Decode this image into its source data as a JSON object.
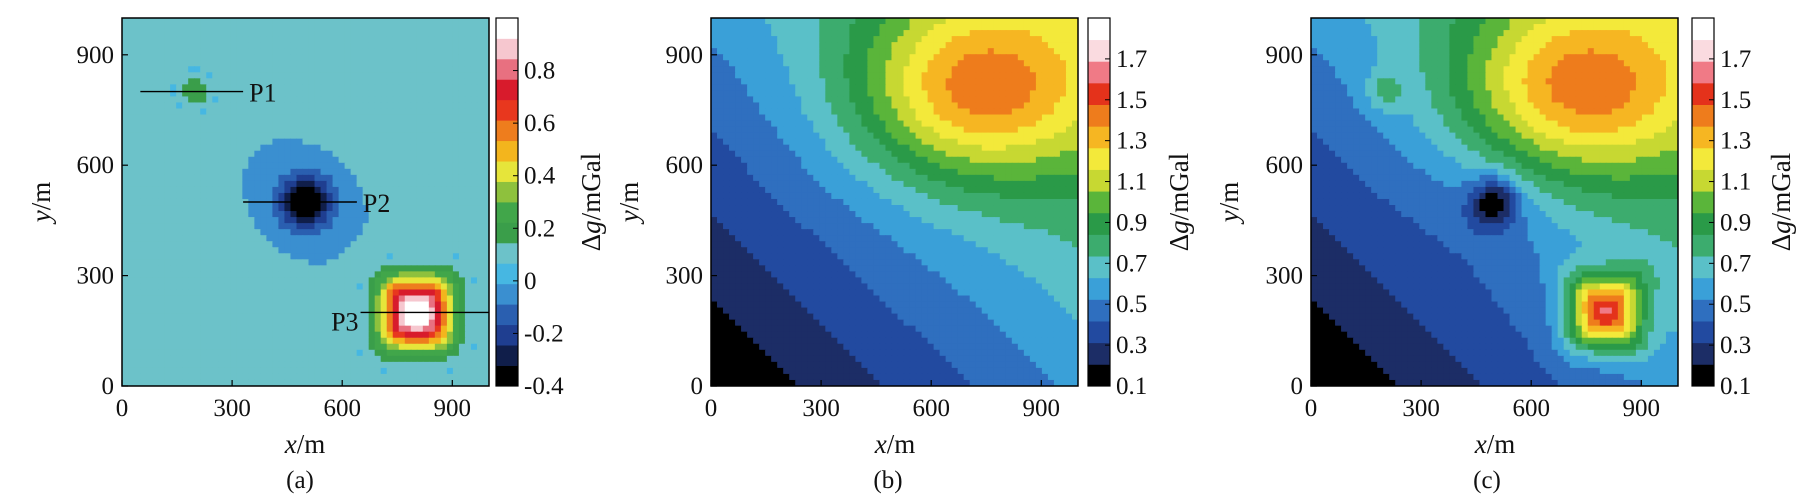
{
  "chart_data": [
    {
      "type": "heatmap",
      "caption": "(a)",
      "xlabel": "x/m",
      "ylabel": "y/m",
      "xlim": [
        0,
        1000
      ],
      "ylim": [
        0,
        1000
      ],
      "xticks": [
        0,
        300,
        600,
        900
      ],
      "yticks": [
        0,
        300,
        600,
        900
      ],
      "colorbar": {
        "label": "Δg/mGal",
        "range": [
          -0.4,
          1.0
        ],
        "ticks": [
          "0.8",
          "0.6",
          "0.4",
          "0.2",
          "0",
          "-0.2",
          "-0.4"
        ],
        "tick_values": [
          0.8,
          0.6,
          0.4,
          0.2,
          0,
          -0.2,
          -0.4
        ]
      },
      "background_value": 0.02,
      "anomalies": [
        {
          "x": 200,
          "y": 800,
          "peak": 0.2,
          "sigma": 35
        },
        {
          "x": 500,
          "y": 500,
          "peak": -0.45,
          "sigma": 45
        },
        {
          "x": 500,
          "y": 500,
          "peak": -0.07,
          "sigma": 180,
          "stretch": "diagonal"
        },
        {
          "x": 800,
          "y": 200,
          "peak": 1.05,
          "sigma": 65,
          "shape": "square"
        }
      ],
      "profiles": [
        {
          "label": "P1",
          "x_start": 50,
          "x_end": 330,
          "y": 800
        },
        {
          "label": "P2",
          "x_start": 330,
          "x_end": 640,
          "y": 500
        },
        {
          "label": "P3",
          "x_start": 650,
          "x_end": 1000,
          "y": 200
        }
      ]
    },
    {
      "type": "heatmap",
      "caption": "(b)",
      "xlabel": "x/m",
      "ylabel": "y/m",
      "xlim": [
        0,
        1000
      ],
      "ylim": [
        0,
        1000
      ],
      "xticks": [
        0,
        300,
        600,
        900
      ],
      "yticks": [
        0,
        300,
        600,
        900
      ],
      "colorbar": {
        "label": "Δg/mGal",
        "range": [
          0.1,
          1.9
        ],
        "ticks": [
          "1.7",
          "1.5",
          "1.3",
          "1.1",
          "0.9",
          "0.7",
          "0.5",
          "0.3",
          "0.1"
        ],
        "tick_values": [
          1.7,
          1.5,
          1.3,
          1.1,
          0.9,
          0.7,
          0.5,
          0.3,
          0.1
        ]
      },
      "regional_field": {
        "base": 0.1,
        "gradient_per_m": 0.00075,
        "peak": {
          "x": 720,
          "y": 800,
          "amplitude": 0.65,
          "sigma_x": 230,
          "sigma_y": 170
        }
      },
      "anomalies": []
    },
    {
      "type": "heatmap",
      "caption": "(c)",
      "xlabel": "x/m",
      "ylabel": "y/m",
      "xlim": [
        0,
        1000
      ],
      "ylim": [
        0,
        1000
      ],
      "xticks": [
        0,
        300,
        600,
        900
      ],
      "yticks": [
        0,
        300,
        600,
        900
      ],
      "colorbar": {
        "label": "Δg/mGal",
        "range": [
          0.1,
          1.9
        ],
        "ticks": [
          "1.7",
          "1.5",
          "1.3",
          "1.1",
          "0.9",
          "0.7",
          "0.5",
          "0.3",
          "0.1"
        ],
        "tick_values": [
          1.7,
          1.5,
          1.3,
          1.1,
          0.9,
          0.7,
          0.5,
          0.3,
          0.1
        ]
      },
      "regional_field": {
        "base": 0.1,
        "gradient_per_m": 0.00075,
        "peak": {
          "x": 720,
          "y": 800,
          "amplitude": 0.65,
          "sigma_x": 230,
          "sigma_y": 170
        }
      },
      "anomalies": [
        {
          "x": 200,
          "y": 800,
          "peak": 0.2,
          "sigma": 35
        },
        {
          "x": 500,
          "y": 500,
          "peak": -0.45,
          "sigma": 45
        },
        {
          "x": 500,
          "y": 500,
          "peak": -0.07,
          "sigma": 180,
          "stretch": "diagonal"
        },
        {
          "x": 800,
          "y": 200,
          "peak": 1.05,
          "sigma": 65,
          "shape": "square"
        }
      ]
    }
  ],
  "palettes": {
    "a": [
      "#000000",
      "#101e4a",
      "#1f3e90",
      "#2a5fb0",
      "#3a8fd0",
      "#46b7e2",
      "#6cc2c9",
      "#3a9e4a",
      "#41a64a",
      "#8ec13d",
      "#e6e53a",
      "#f3b51d",
      "#ee7d1d",
      "#e8371e",
      "#d81b2c",
      "#e87080",
      "#f6c7cf",
      "#ffffff"
    ],
    "a_background": "#6cc2c9",
    "bc": [
      "#000000",
      "#1c2d66",
      "#224aa0",
      "#2f6fbf",
      "#3aa0d8",
      "#5ac0c8",
      "#3cac6e",
      "#2a9a48",
      "#5ab53a",
      "#c7d832",
      "#f3e93a",
      "#f6b622",
      "#ee7c1c",
      "#e4321b",
      "#f07a86",
      "#fadbe0",
      "#ffffff"
    ]
  }
}
